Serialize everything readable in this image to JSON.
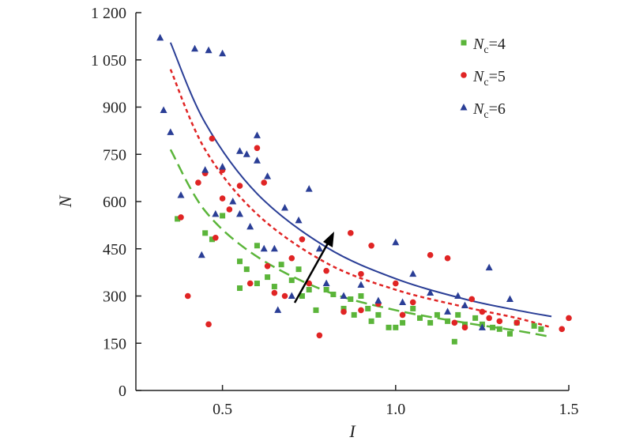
{
  "chart_data": {
    "type": "scatter",
    "xlabel": "I",
    "ylabel": "N",
    "xlim": [
      0.25,
      1.5
    ],
    "ylim": [
      0,
      1200
    ],
    "x_ticks": [
      0.5,
      1.0,
      1.5
    ],
    "x_tick_labels": [
      "0.5",
      "1.0",
      "1.5"
    ],
    "y_ticks": [
      0,
      150,
      300,
      450,
      600,
      750,
      900,
      1050,
      1200
    ],
    "y_tick_labels": [
      "0",
      "150",
      "300",
      "450",
      "600",
      "750",
      "900",
      "1 050",
      "1 200"
    ],
    "legend_position": "top-right",
    "series": [
      {
        "name": "Nc=4",
        "name_main": "N",
        "name_sub": "c",
        "name_rest": "=4",
        "color": "#5bb53a",
        "marker": "square",
        "points": [
          [
            0.37,
            545
          ],
          [
            0.45,
            500
          ],
          [
            0.47,
            480
          ],
          [
            0.5,
            555
          ],
          [
            0.55,
            410
          ],
          [
            0.55,
            325
          ],
          [
            0.57,
            385
          ],
          [
            0.6,
            460
          ],
          [
            0.6,
            340
          ],
          [
            0.63,
            360
          ],
          [
            0.65,
            330
          ],
          [
            0.67,
            400
          ],
          [
            0.7,
            350
          ],
          [
            0.72,
            385
          ],
          [
            0.73,
            300
          ],
          [
            0.75,
            320
          ],
          [
            0.77,
            255
          ],
          [
            0.8,
            320
          ],
          [
            0.82,
            305
          ],
          [
            0.85,
            260
          ],
          [
            0.87,
            290
          ],
          [
            0.88,
            240
          ],
          [
            0.9,
            300
          ],
          [
            0.92,
            260
          ],
          [
            0.93,
            220
          ],
          [
            0.95,
            240
          ],
          [
            0.98,
            200
          ],
          [
            1.0,
            200
          ],
          [
            1.02,
            215
          ],
          [
            1.05,
            260
          ],
          [
            1.07,
            230
          ],
          [
            1.1,
            215
          ],
          [
            1.12,
            240
          ],
          [
            1.15,
            220
          ],
          [
            1.17,
            155
          ],
          [
            1.18,
            240
          ],
          [
            1.2,
            210
          ],
          [
            1.23,
            230
          ],
          [
            1.25,
            210
          ],
          [
            1.28,
            200
          ],
          [
            1.3,
            195
          ],
          [
            1.33,
            180
          ],
          [
            1.35,
            215
          ],
          [
            1.4,
            205
          ],
          [
            1.42,
            195
          ]
        ],
        "fit": [
          [
            0.35,
            765
          ],
          [
            0.45,
            570
          ],
          [
            0.6,
            425
          ],
          [
            0.8,
            315
          ],
          [
            1.0,
            255
          ],
          [
            1.2,
            215
          ],
          [
            1.35,
            190
          ],
          [
            1.45,
            170
          ]
        ]
      },
      {
        "name": "Nc=5",
        "name_main": "N",
        "name_sub": "c",
        "name_rest": "=5",
        "color": "#e02424",
        "marker": "circle",
        "points": [
          [
            0.38,
            550
          ],
          [
            0.4,
            300
          ],
          [
            0.43,
            660
          ],
          [
            0.45,
            690
          ],
          [
            0.46,
            210
          ],
          [
            0.47,
            800
          ],
          [
            0.48,
            485
          ],
          [
            0.5,
            700
          ],
          [
            0.5,
            610
          ],
          [
            0.52,
            575
          ],
          [
            0.55,
            650
          ],
          [
            0.58,
            340
          ],
          [
            0.6,
            770
          ],
          [
            0.62,
            660
          ],
          [
            0.63,
            395
          ],
          [
            0.65,
            310
          ],
          [
            0.68,
            300
          ],
          [
            0.7,
            420
          ],
          [
            0.73,
            480
          ],
          [
            0.75,
            340
          ],
          [
            0.78,
            175
          ],
          [
            0.8,
            380
          ],
          [
            0.85,
            250
          ],
          [
            0.87,
            500
          ],
          [
            0.9,
            370
          ],
          [
            0.9,
            255
          ],
          [
            0.93,
            460
          ],
          [
            0.95,
            275
          ],
          [
            1.0,
            340
          ],
          [
            1.02,
            240
          ],
          [
            1.05,
            280
          ],
          [
            1.1,
            430
          ],
          [
            1.15,
            420
          ],
          [
            1.17,
            215
          ],
          [
            1.2,
            200
          ],
          [
            1.22,
            290
          ],
          [
            1.25,
            250
          ],
          [
            1.27,
            230
          ],
          [
            1.3,
            220
          ],
          [
            1.35,
            215
          ],
          [
            1.48,
            195
          ],
          [
            1.5,
            230
          ]
        ],
        "fit": [
          [
            0.35,
            1020
          ],
          [
            0.45,
            765
          ],
          [
            0.6,
            560
          ],
          [
            0.8,
            405
          ],
          [
            1.0,
            320
          ],
          [
            1.2,
            265
          ],
          [
            1.35,
            230
          ],
          [
            1.45,
            200
          ]
        ]
      },
      {
        "name": "Nc=6",
        "name_main": "N",
        "name_sub": "c",
        "name_rest": "=6",
        "color": "#2a3e96",
        "marker": "triangle",
        "points": [
          [
            0.32,
            1120
          ],
          [
            0.33,
            890
          ],
          [
            0.35,
            820
          ],
          [
            0.38,
            620
          ],
          [
            0.42,
            1085
          ],
          [
            0.44,
            430
          ],
          [
            0.45,
            700
          ],
          [
            0.46,
            1080
          ],
          [
            0.48,
            560
          ],
          [
            0.5,
            1070
          ],
          [
            0.5,
            710
          ],
          [
            0.53,
            600
          ],
          [
            0.55,
            760
          ],
          [
            0.55,
            560
          ],
          [
            0.57,
            750
          ],
          [
            0.58,
            520
          ],
          [
            0.6,
            730
          ],
          [
            0.6,
            810
          ],
          [
            0.62,
            450
          ],
          [
            0.63,
            680
          ],
          [
            0.65,
            450
          ],
          [
            0.66,
            255
          ],
          [
            0.68,
            580
          ],
          [
            0.7,
            300
          ],
          [
            0.72,
            540
          ],
          [
            0.75,
            640
          ],
          [
            0.78,
            450
          ],
          [
            0.8,
            340
          ],
          [
            0.85,
            300
          ],
          [
            0.9,
            335
          ],
          [
            0.95,
            285
          ],
          [
            1.0,
            470
          ],
          [
            1.02,
            280
          ],
          [
            1.05,
            370
          ],
          [
            1.1,
            310
          ],
          [
            1.15,
            250
          ],
          [
            1.18,
            300
          ],
          [
            1.2,
            270
          ],
          [
            1.25,
            200
          ],
          [
            1.27,
            390
          ],
          [
            1.33,
            290
          ]
        ],
        "fit": [
          [
            0.35,
            1105
          ],
          [
            0.45,
            850
          ],
          [
            0.6,
            625
          ],
          [
            0.8,
            455
          ],
          [
            1.0,
            355
          ],
          [
            1.2,
            290
          ],
          [
            1.35,
            255
          ],
          [
            1.45,
            235
          ]
        ]
      }
    ]
  }
}
